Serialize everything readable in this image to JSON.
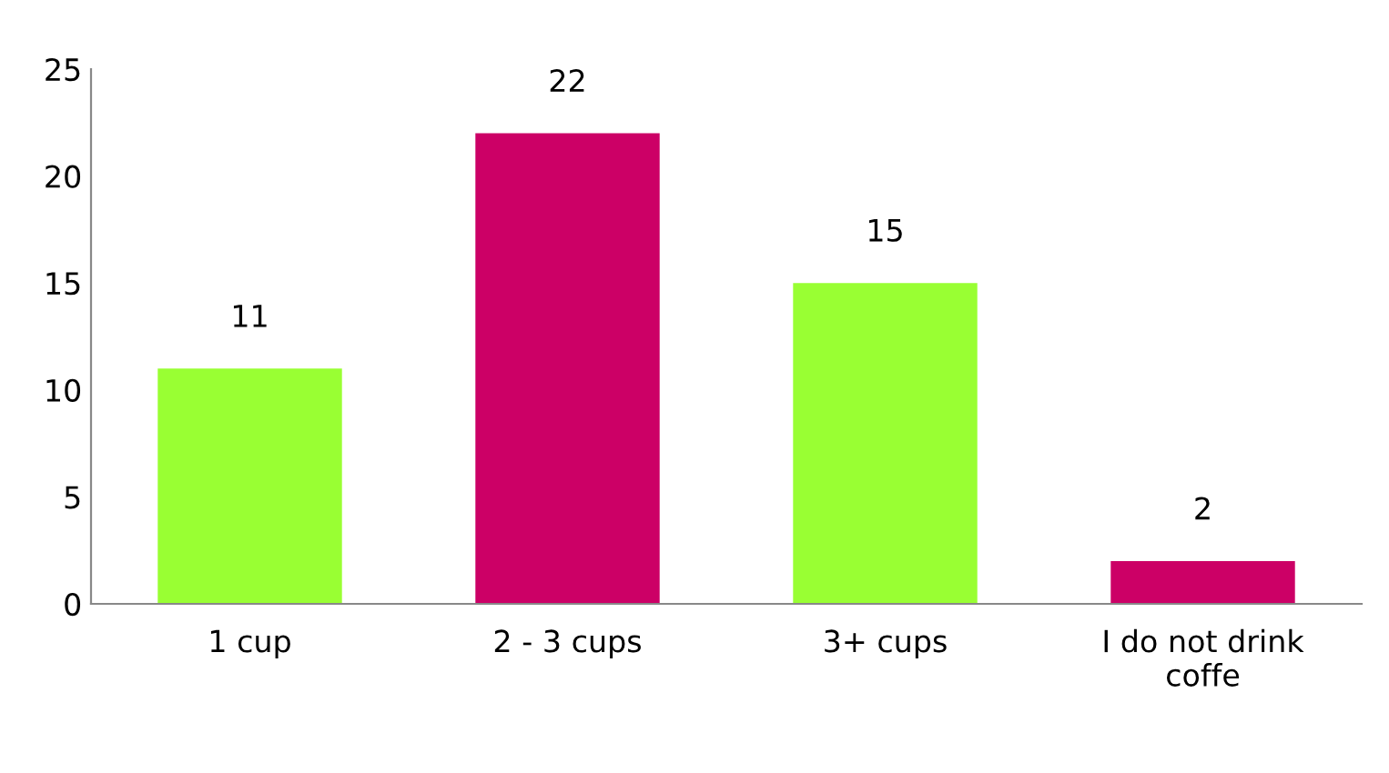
{
  "chart_data": {
    "type": "bar",
    "categories": [
      "1 cup",
      "2 - 3 cups",
      "3+ cups",
      "I do not drink\ncoffe"
    ],
    "values": [
      11,
      22,
      15,
      2
    ],
    "colors": [
      "#99ff33",
      "#cc0066",
      "#99ff33",
      "#cc0066"
    ],
    "ylim": [
      0,
      25
    ],
    "yticks": [
      0,
      5,
      10,
      15,
      20,
      25
    ],
    "grid": false,
    "legend": false,
    "data_labels": true
  }
}
